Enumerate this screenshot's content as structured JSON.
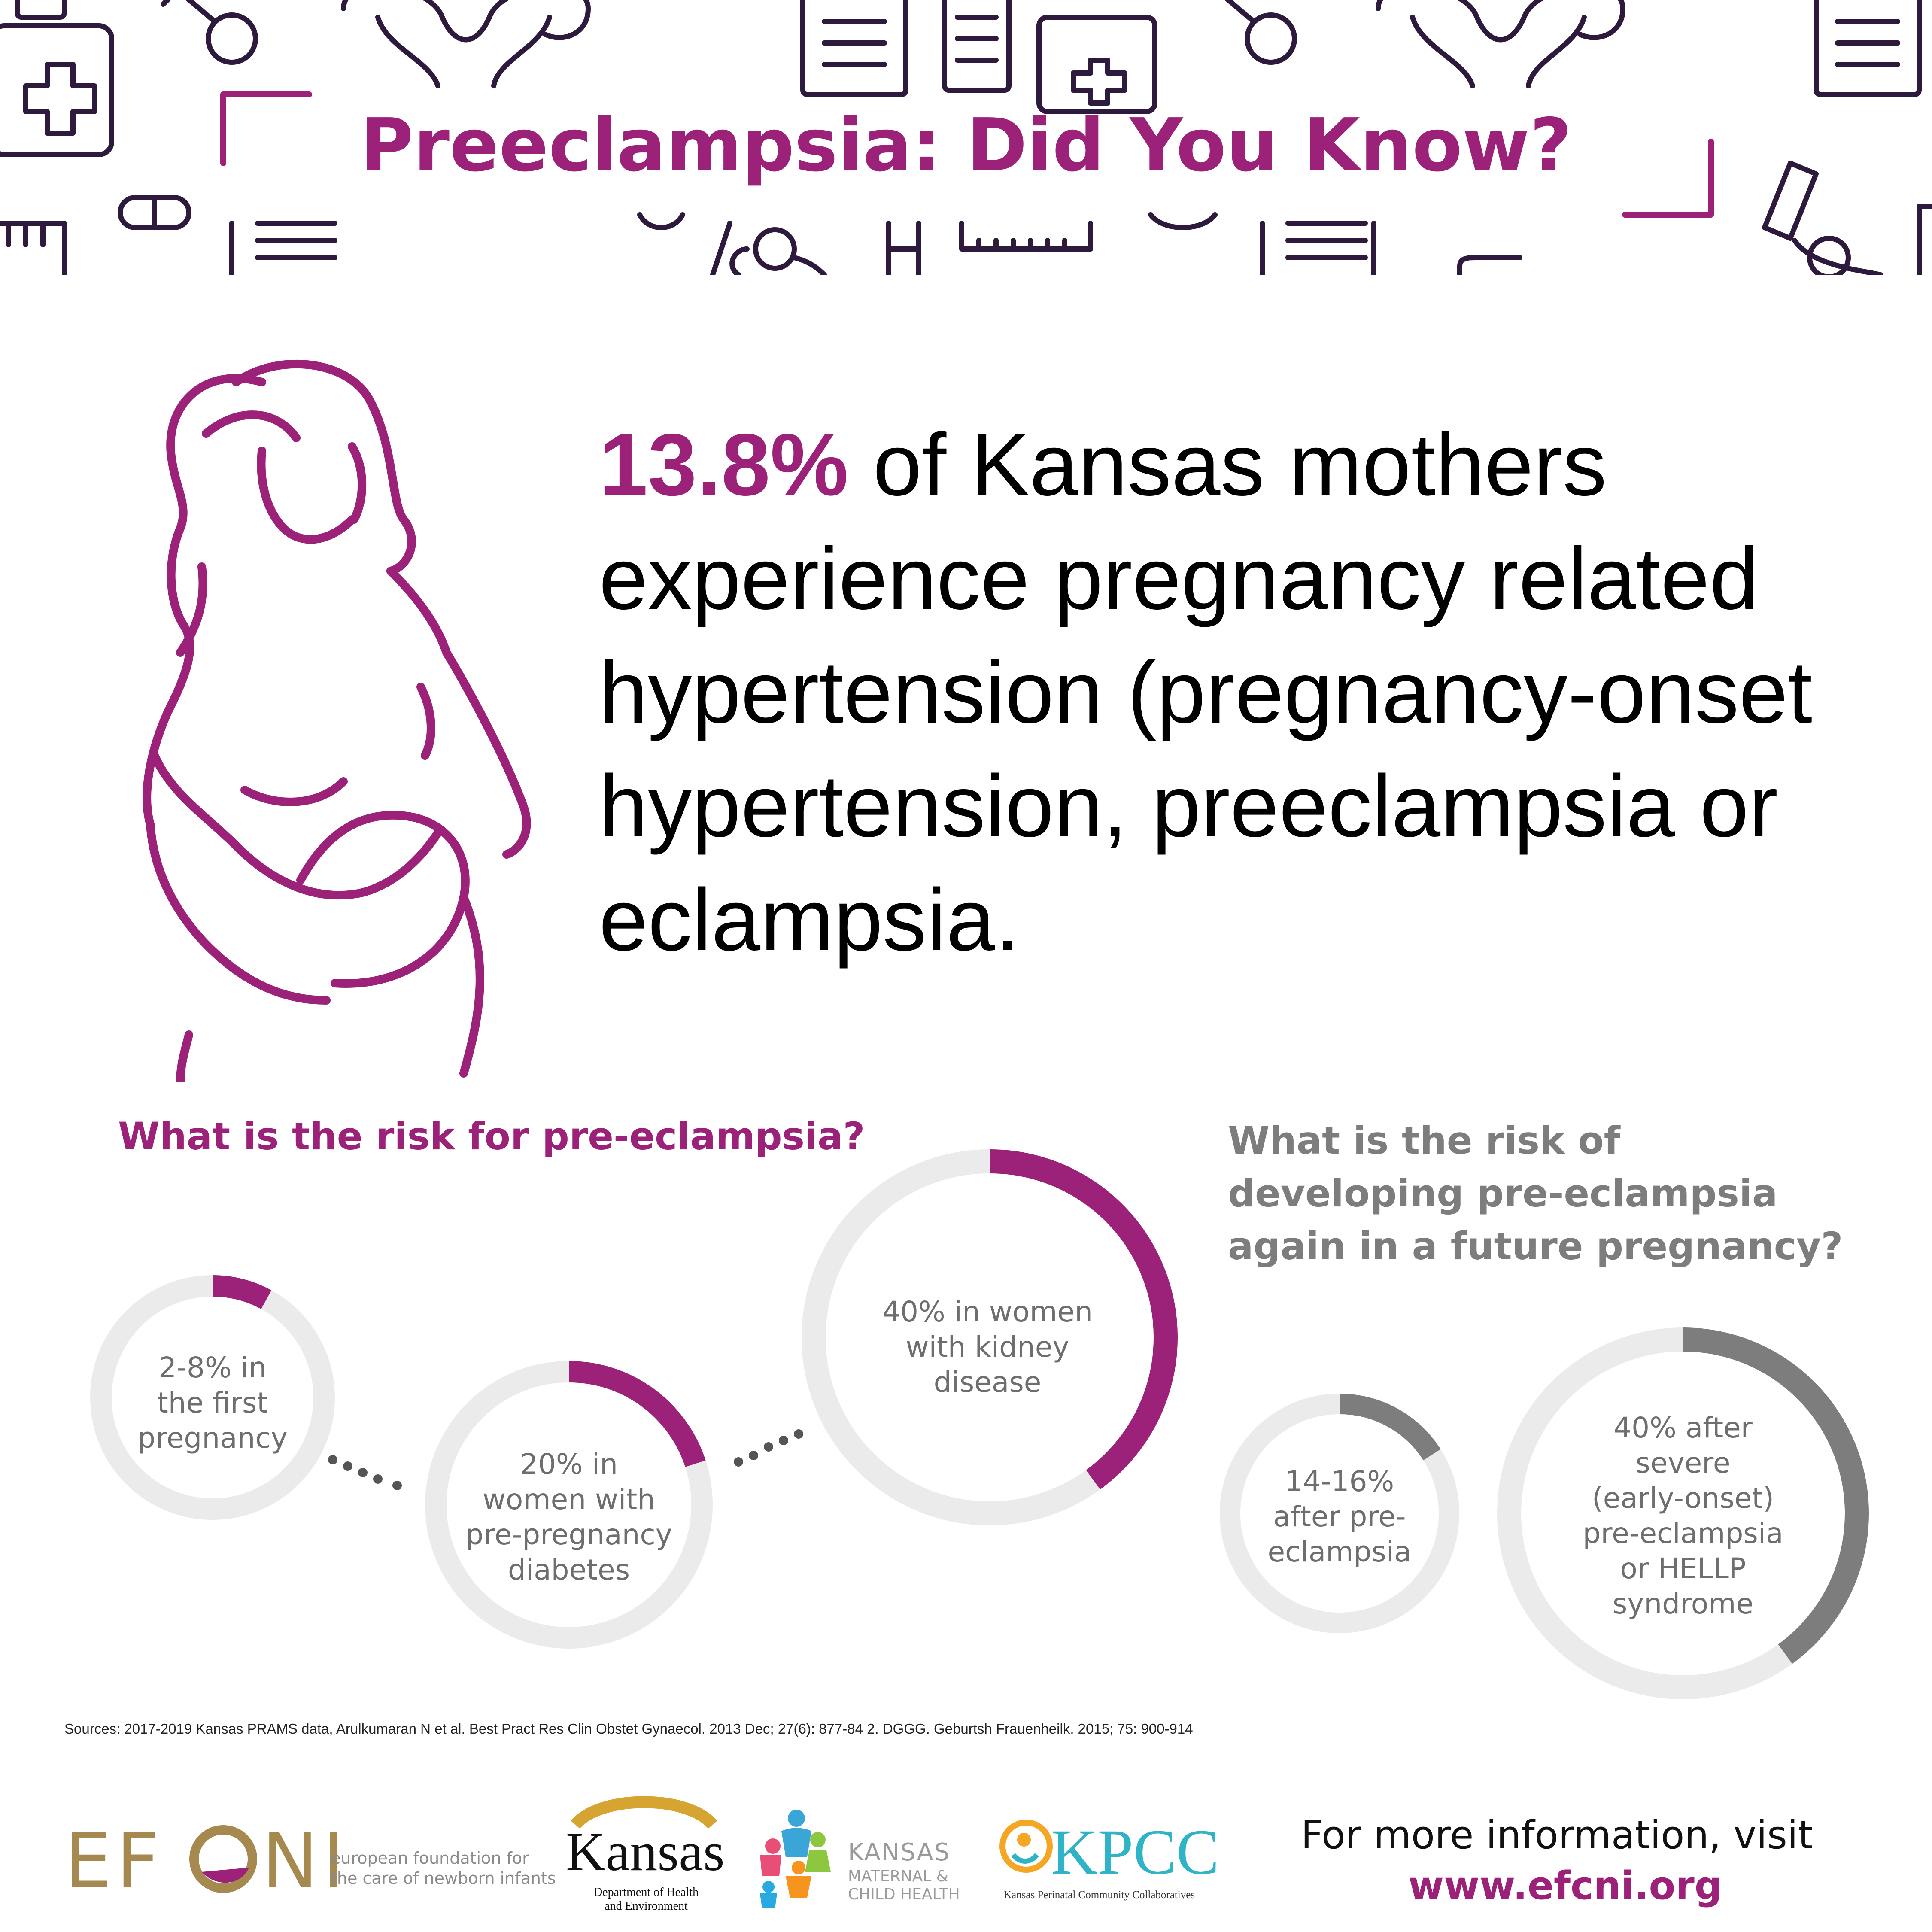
{
  "title": "Preeclampsia: Did You Know?",
  "headline": {
    "highlight": "13.8%",
    "text": " of Kansas mothers experience pregnancy related hypertension (pregnancy-onset hypertension, preeclampsia or eclampsia."
  },
  "colors": {
    "accent": "#9b2179",
    "grey_series": "#7d7d7d",
    "track": "#ebebeb",
    "icon_line": "#2e1a3d"
  },
  "chart_data": [
    {
      "type": "donut",
      "title": "What is the risk for pre-eclampsia?",
      "series": [
        {
          "label": "2-8% in the first pregnancy",
          "value": 8
        },
        {
          "label": "20% in women with pre-pregnancy diabetes",
          "value": 20
        },
        {
          "label": "40% in women with kidney disease",
          "value": 40
        }
      ]
    },
    {
      "type": "donut",
      "title": "What  is the risk of developing pre-eclampsia again in a future pregnancy?",
      "series": [
        {
          "label": "14-16% after pre-eclampsia",
          "value": 16
        },
        {
          "label": "40% after severe (early-onset) pre-eclampsia or HELLP syndrome",
          "value": 40
        }
      ]
    }
  ],
  "labels": {
    "d1": [
      "2-8% in",
      "the first",
      "pregnancy"
    ],
    "d2": [
      "20% in",
      "women with",
      "pre-pregnancy",
      "diabetes"
    ],
    "d3": [
      "40% in women",
      "with kidney",
      "disease"
    ],
    "d4": [
      "14-16%",
      "after pre-",
      "eclampsia"
    ],
    "d5": [
      "40% after",
      "severe",
      "(early-onset)",
      "pre-eclampsia",
      "or HELLP",
      "syndrome"
    ]
  },
  "questions": {
    "left": "What is the risk for pre-eclampsia?",
    "right_lines": [
      "What  is the risk of",
      "developing pre-eclampsia",
      "again in a future pregnancy?"
    ]
  },
  "sources": "Sources: 2017-2019 Kansas PRAMS data, Arulkumaran N et al. Best Pract Res Clin Obstet Gynaecol. 2013 Dec; 27(6): 877-84 2. DGGG. Geburtsh Frauenheilk. 2015; 75: 900-914",
  "logos": {
    "efcni_mark": "EFCNI",
    "efcni_line1": "european foundation for",
    "efcni_line2": "the care of newborn infants",
    "kansas_word": "Kansas",
    "kansas_sub1": "Department of Health",
    "kansas_sub2": "and Environment",
    "mch_line1": "KANSAS",
    "mch_line2": "MATERNAL &",
    "mch_line3": "CHILD HEALTH",
    "kpcc_word": "KPCC",
    "kpcc_sub": "Kansas Perinatal Community Collaboratives"
  },
  "footer": {
    "more_info": "For more information, visit",
    "url": "www.efcni.org"
  },
  "icons": [
    "medicine-bottle-icon",
    "female-symbol-icon",
    "uterus-icon",
    "clipboard-icon",
    "pill-pack-icon",
    "capsule-icon",
    "ruler-icon",
    "stethoscope-icon",
    "microscope-icon",
    "pregnant-woman-icon",
    "efcni-logo-icon",
    "kansas-seal-icon",
    "mch-people-logo-icon",
    "kpcc-logo-icon"
  ]
}
